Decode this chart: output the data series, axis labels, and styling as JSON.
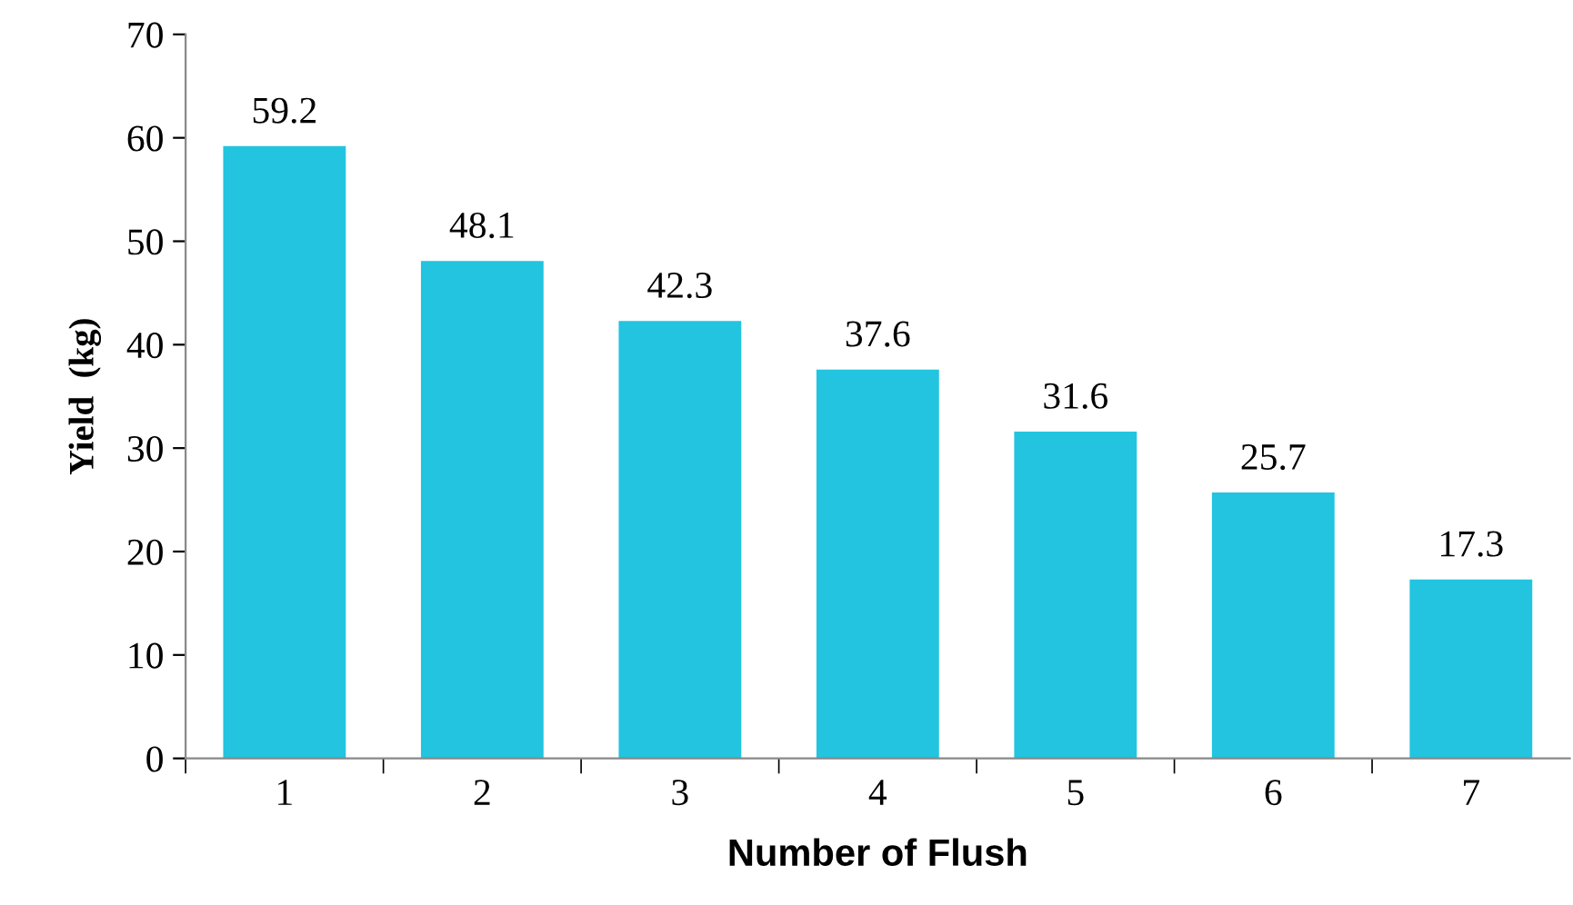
{
  "chart_data": {
    "type": "bar",
    "xlabel": "Number of Flush",
    "ylabel": "Yield  (kg)",
    "categories": [
      "1",
      "2",
      "3",
      "4",
      "5",
      "6",
      "7"
    ],
    "values": [
      59.2,
      48.1,
      42.3,
      37.6,
      31.6,
      25.7,
      17.3
    ],
    "color": "#22c4e0",
    "ylim": [
      0,
      70
    ],
    "yticks": [
      0,
      10,
      20,
      30,
      40,
      50,
      60,
      70
    ],
    "data_labels": true,
    "grid": false,
    "legend": false
  }
}
